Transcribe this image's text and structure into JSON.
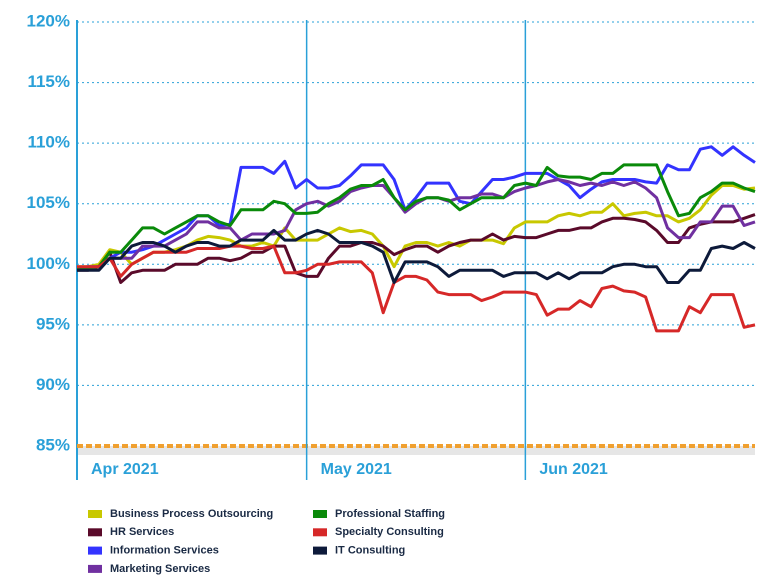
{
  "chart_data": {
    "type": "line",
    "categories": [
      "Apr 2021",
      null,
      null,
      null,
      null,
      null,
      null,
      null,
      null,
      null,
      null,
      null,
      null,
      null,
      null,
      null,
      null,
      null,
      null,
      null,
      null,
      "May 2021",
      null,
      null,
      null,
      null,
      null,
      null,
      null,
      null,
      null,
      null,
      null,
      null,
      null,
      null,
      null,
      null,
      null,
      null,
      null,
      "Jun 2021",
      null,
      null,
      null,
      null,
      null,
      null,
      null,
      null,
      null,
      null,
      null,
      null,
      null,
      null,
      null,
      null,
      null,
      null,
      null,
      null,
      null
    ],
    "ylim": [
      85,
      120
    ],
    "yticks": [
      {
        "value": 85,
        "label": "85%"
      },
      {
        "value": 90,
        "label": "90%"
      },
      {
        "value": 95,
        "label": "95%"
      },
      {
        "value": 100,
        "label": "100%"
      },
      {
        "value": 105,
        "label": "105%"
      },
      {
        "value": 110,
        "label": "110%"
      },
      {
        "value": 115,
        "label": "115%"
      },
      {
        "value": 120,
        "label": "120%"
      }
    ],
    "grid": true,
    "series": [
      {
        "name": "Business Process Outsourcing",
        "color": "#c8c800",
        "values": [
          99.8,
          99.8,
          100,
          101.2,
          101,
          100,
          100.5,
          101,
          101,
          101.2,
          101.5,
          102,
          102.3,
          102.2,
          102,
          101.5,
          101.5,
          101.8,
          101.5,
          103,
          102,
          102,
          102,
          102.5,
          103,
          102.7,
          102.8,
          102.5,
          101.5,
          99.8,
          101.5,
          101.8,
          101.8,
          101.5,
          101.8,
          101.5,
          102,
          102,
          102,
          101.7,
          103,
          103.5,
          103.5,
          103.5,
          104,
          104.2,
          104,
          104.3,
          104.3,
          105,
          104,
          104.2,
          104.3,
          104,
          104,
          103.5,
          103.8,
          104.5,
          105.7,
          106.5,
          106.5,
          106.2,
          106.3
        ]
      },
      {
        "name": "HR Services",
        "color": "#5a0a2a",
        "values": [
          99.5,
          99.5,
          99.8,
          101,
          98.5,
          99.3,
          99.5,
          99.5,
          99.5,
          100,
          100,
          100,
          100.5,
          100.5,
          100.3,
          100.5,
          101,
          101,
          101.5,
          101.5,
          99.3,
          99,
          99,
          100.5,
          101.5,
          101.5,
          101.8,
          101.8,
          101.5,
          100.8,
          101.2,
          101.5,
          101.5,
          101,
          101.5,
          101.8,
          102,
          102,
          102.5,
          102,
          102.3,
          102.2,
          102.2,
          102.5,
          102.8,
          102.8,
          103,
          103,
          103.5,
          103.8,
          103.8,
          103.7,
          103.5,
          102.8,
          101.8,
          101.8,
          103,
          103.3,
          103.5,
          103.5,
          103.5,
          103.8,
          104.1
        ]
      },
      {
        "name": "Information Services",
        "color": "#3333ff",
        "values": [
          99.7,
          99.8,
          99.8,
          100.5,
          101,
          101,
          101.2,
          101.5,
          102,
          102.5,
          103,
          104,
          104,
          103.2,
          103.3,
          108,
          108,
          108,
          107.5,
          108.5,
          106.3,
          107,
          106.3,
          106.3,
          106.5,
          107.3,
          108.2,
          108.2,
          108.2,
          107,
          104.5,
          105.5,
          106.7,
          106.7,
          106.7,
          105.2,
          105,
          106,
          107,
          107,
          107.2,
          107.5,
          107.5,
          107.5,
          107,
          106.5,
          105.5,
          106.2,
          106.8,
          107,
          107,
          107,
          106.8,
          106.7,
          108.2,
          107.8,
          107.8,
          109.5,
          109.7,
          109,
          109.7,
          109,
          108.4
        ]
      },
      {
        "name": "Marketing Services",
        "color": "#7030a0",
        "values": [
          99.7,
          99.7,
          99.8,
          100.5,
          100.5,
          100.5,
          101.5,
          101.5,
          101.5,
          102,
          102.5,
          103.5,
          103.5,
          103,
          103,
          102,
          102.5,
          102.5,
          102.5,
          102.8,
          104.5,
          105,
          105.2,
          104.8,
          105.2,
          106,
          106.3,
          106.5,
          106.5,
          105.5,
          104.3,
          105,
          105.5,
          105.5,
          105.2,
          105.5,
          105.5,
          105.8,
          105.8,
          105.5,
          106,
          106.3,
          106.5,
          106.8,
          107,
          106.8,
          106.5,
          106.7,
          106.5,
          106.8,
          106.5,
          106.8,
          106.3,
          105.5,
          103,
          102.2,
          102.2,
          103.5,
          103.5,
          104.8,
          104.8,
          103.2,
          103.5
        ]
      },
      {
        "name": "Professional Staffing",
        "color": "#0a8a0a",
        "values": [
          99.7,
          99.7,
          99.8,
          101,
          101,
          102,
          103,
          103,
          102.5,
          103,
          103.5,
          104,
          104,
          103.5,
          103.2,
          104.5,
          104.5,
          104.5,
          105.2,
          105,
          104.2,
          104.2,
          104.3,
          105,
          105.5,
          106.2,
          106.5,
          106.5,
          107,
          105.5,
          104.5,
          105.2,
          105.5,
          105.5,
          105.3,
          104.5,
          105,
          105.5,
          105.5,
          105.5,
          106.5,
          106.7,
          106.5,
          108,
          107.3,
          107.2,
          107.2,
          107,
          107.5,
          107.5,
          108.2,
          108.2,
          108.2,
          108.2,
          106,
          104,
          104.2,
          105.5,
          106,
          106.7,
          106.7,
          106.3,
          106
        ]
      },
      {
        "name": "Specialty Consulting",
        "color": "#d62828",
        "values": [
          99.8,
          99.8,
          99.8,
          100.5,
          99,
          100,
          100.5,
          101,
          101,
          101,
          101,
          101.3,
          101.3,
          101.3,
          101.5,
          101.5,
          101.3,
          101.3,
          101.5,
          99.3,
          99.3,
          99.5,
          100,
          100,
          100.2,
          100.2,
          100.2,
          99.3,
          96,
          98.5,
          99,
          99,
          98.7,
          97.7,
          97.5,
          97.5,
          97.5,
          97,
          97.3,
          97.7,
          97.7,
          97.7,
          97.5,
          95.8,
          96.3,
          96.3,
          97,
          96.5,
          98,
          98.2,
          97.8,
          97.7,
          97.3,
          94.5,
          94.5,
          94.5,
          96.5,
          96,
          97.5,
          97.5,
          97.5,
          94.8,
          95
        ]
      },
      {
        "name": "IT Consulting",
        "color": "#0d1a3a",
        "values": [
          99.5,
          99.5,
          99.5,
          100.5,
          100.5,
          101.5,
          101.8,
          101.8,
          101.5,
          101,
          101.5,
          101.8,
          101.8,
          101.5,
          101.5,
          102,
          102,
          102,
          102.8,
          102,
          102,
          102.5,
          102.8,
          102.5,
          101.8,
          101.8,
          101.8,
          101.5,
          101,
          98.5,
          100.2,
          100.2,
          100.2,
          99.8,
          99,
          99.5,
          99.5,
          99.5,
          99.5,
          99,
          99.3,
          99.3,
          99.3,
          98.8,
          99.3,
          98.8,
          99.3,
          99.3,
          99.3,
          99.8,
          100,
          100,
          99.8,
          99.8,
          98.5,
          98.5,
          99.5,
          99.5,
          101.3,
          101.5,
          101.3,
          101.8,
          101.3
        ]
      }
    ]
  }
}
